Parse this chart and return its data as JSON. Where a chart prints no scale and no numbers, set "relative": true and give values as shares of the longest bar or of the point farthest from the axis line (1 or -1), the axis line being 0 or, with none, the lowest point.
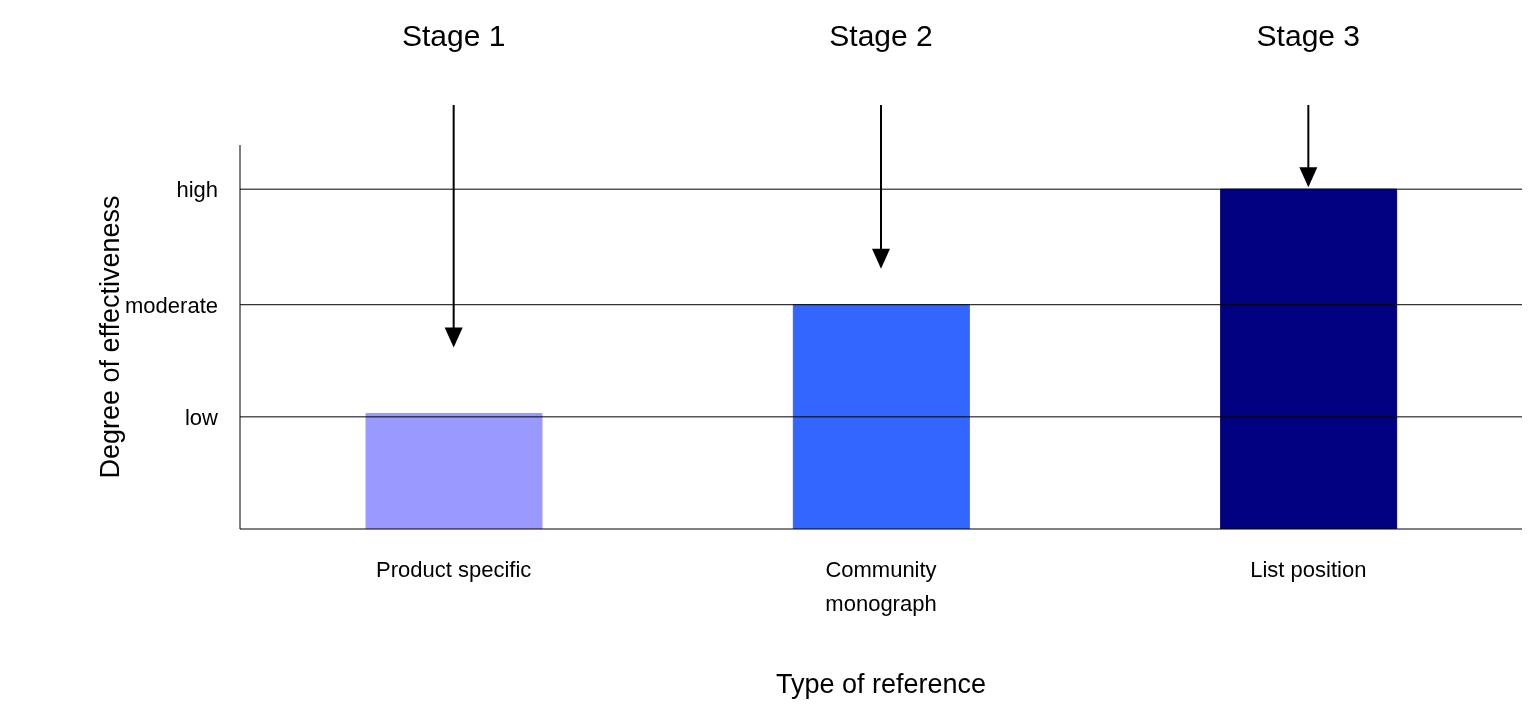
{
  "chart_data": {
    "type": "bar",
    "xlabel": "Type of reference",
    "ylabel": "Degree of effectiveness",
    "categories": [
      "Product specific",
      "Community monograph",
      "List position"
    ],
    "values": [
      0.34,
      0.66,
      1
    ],
    "colors": [
      "#9999ff",
      "#3366ff",
      "#000080"
    ],
    "relative": true,
    "ref_lines": [
      {
        "axis": "y",
        "value": 0.33,
        "label": "low",
        "color": "#000000"
      },
      {
        "axis": "y",
        "value": 0.66,
        "label": "moderate",
        "color": "#000000"
      },
      {
        "axis": "y",
        "value": 1,
        "label": "high",
        "color": "#000000"
      }
    ],
    "annotations": [
      "Stage 1",
      "Stage 2",
      "Stage 3"
    ]
  }
}
